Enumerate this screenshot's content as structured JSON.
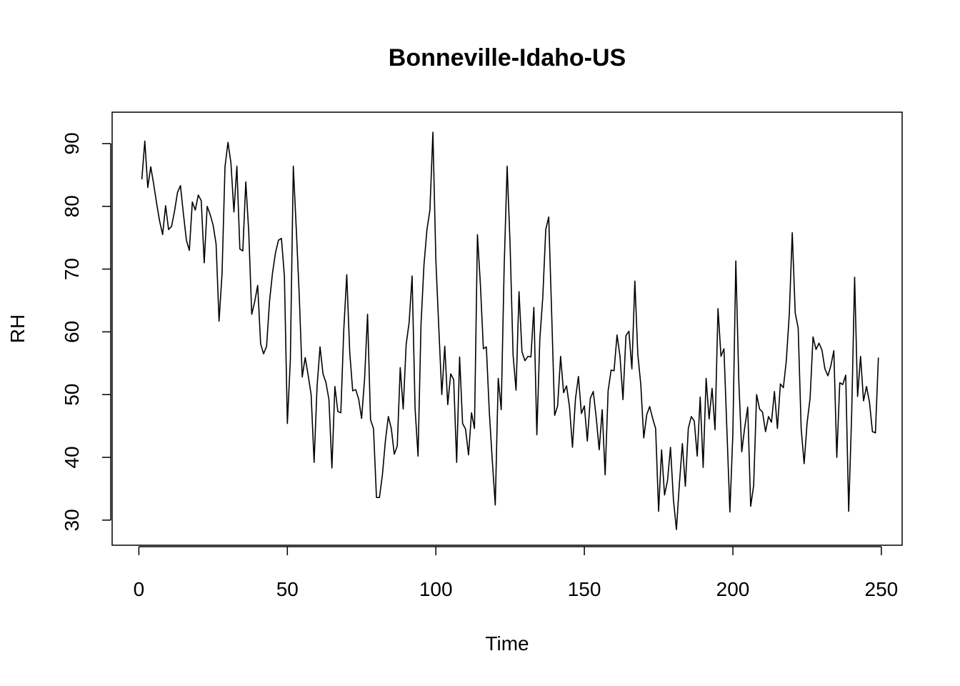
{
  "chart_data": {
    "type": "line",
    "title": "Bonneville-Idaho-US",
    "xlabel": "Time",
    "ylabel": "RH",
    "xlim": [
      -9,
      257
    ],
    "ylim": [
      26,
      95
    ],
    "x_ticks": [
      0,
      50,
      100,
      150,
      200,
      250
    ],
    "y_ticks": [
      30,
      40,
      50,
      60,
      70,
      80,
      90
    ],
    "x_tick_labels": [
      "0",
      "50",
      "100",
      "150",
      "200",
      "250"
    ],
    "y_tick_labels": [
      "30",
      "40",
      "50",
      "60",
      "70",
      "80",
      "90"
    ],
    "grid": false,
    "line_color": "#000000",
    "x_start": 1,
    "series": [
      {
        "values": [
          84.3,
          90.4,
          83.0,
          86.3,
          83.5,
          80.4,
          77.6,
          75.5,
          80.1,
          76.3,
          76.8,
          79.2,
          82.2,
          83.3,
          78.8,
          74.6,
          73.0,
          80.7,
          79.4,
          81.8,
          80.9,
          71.0,
          80.0,
          78.7,
          77.0,
          74.0,
          61.7,
          69.2,
          86.3,
          90.2,
          86.9,
          79.1,
          86.4,
          73.2,
          72.9,
          83.9,
          75.9,
          62.8,
          64.8,
          67.4,
          58.1,
          56.5,
          57.7,
          64.9,
          69.4,
          72.6,
          74.6,
          74.9,
          68.9,
          45.4,
          55.5,
          86.4,
          76.4,
          65.8,
          52.8,
          55.9,
          53.1,
          50.0,
          39.2,
          51.3,
          57.6,
          53.3,
          51.9,
          49.2,
          38.3,
          51.3,
          47.3,
          47.1,
          60.4,
          69.1,
          56.7,
          50.6,
          50.8,
          49.3,
          46.2,
          52.5,
          62.8,
          46.0,
          44.6,
          33.6,
          33.6,
          37.2,
          42.6,
          46.5,
          44.6,
          40.5,
          41.8,
          54.3,
          47.7,
          58.0,
          61.5,
          68.9,
          47.8,
          40.2,
          61.2,
          70.7,
          76.3,
          79.4,
          91.8,
          71.4,
          60.5,
          50.0,
          57.7,
          48.4,
          53.3,
          52.4,
          39.2,
          56.0,
          45.4,
          44.5,
          40.4,
          47.1,
          44.6,
          75.5,
          67.5,
          57.3,
          57.6,
          47.2,
          39.5,
          32.4,
          52.6,
          47.6,
          70.4,
          86.4,
          73.8,
          56.3,
          50.7,
          66.4,
          56.8,
          55.4,
          56.1,
          56.0,
          63.9,
          43.6,
          58.8,
          65.5,
          76.3,
          78.3,
          62.8,
          46.7,
          48.2,
          56.1,
          50.3,
          51.4,
          48.0,
          41.6,
          49.3,
          52.9,
          47.0,
          48.2,
          42.6,
          49.4,
          50.5,
          46.3,
          41.2,
          47.6,
          37.2,
          50.6,
          53.9,
          53.8,
          59.5,
          56.1,
          49.2,
          59.4,
          60.1,
          54.1,
          68.1,
          56.4,
          51.6,
          43.1,
          46.8,
          48.1,
          46.2,
          44.6,
          31.4,
          41.2,
          34.0,
          36.3,
          41.6,
          33.2,
          28.5,
          35.8,
          42.2,
          35.4,
          44.6,
          46.5,
          45.8,
          40.2,
          49.6,
          38.4,
          52.6,
          46.1,
          51.0,
          44.4,
          63.7,
          56.1,
          57.3,
          44.3,
          31.3,
          43.8,
          71.3,
          52.2,
          40.9,
          44.8,
          48.0,
          32.2,
          35.5,
          50.0,
          47.7,
          47.2,
          44.1,
          46.5,
          45.6,
          50.5,
          44.6,
          51.7,
          51.1,
          55.4,
          62.8,
          75.8,
          63.0,
          60.6,
          44.6,
          39.0,
          45.5,
          49.4,
          59.2,
          57.2,
          58.2,
          57.1,
          54.1,
          53.0,
          54.6,
          57.0,
          40.0,
          51.9,
          51.6,
          53.1,
          31.4,
          46.8,
          68.7,
          49.7,
          56.1,
          49.0,
          51.3,
          48.8,
          44.1,
          43.9,
          55.9
        ]
      }
    ]
  }
}
